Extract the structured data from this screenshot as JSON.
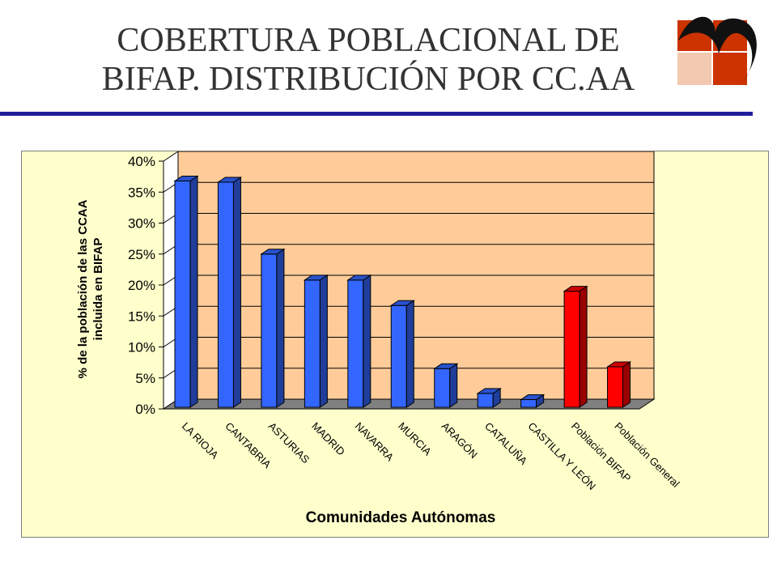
{
  "slide": {
    "title_line1": "COBERTURA POBLACIONAL DE",
    "title_line2": "BIFAP. DISTRIBUCIÓN POR CC.AA",
    "logo_icon": "bifap-logo-icon"
  },
  "colors": {
    "title_rule": "#1f1f9c",
    "chart_background": "#ffffcc",
    "plot_wall": "#ffcc99",
    "floor": "#808080",
    "bar_blue": "#3366ff",
    "bar_red": "#ff0000"
  },
  "chart_data": {
    "type": "bar",
    "three_d": true,
    "categories": [
      "LA RIOJA",
      "CANTABRIA",
      "ASTURIAS",
      "MADRID",
      "NAVARRA",
      "MURCIA",
      "ARAGÓN",
      "CATALUÑA",
      "CASTILLA Y LEÓN",
      "Población BIFAP",
      "Población General"
    ],
    "values": [
      36.8,
      36.6,
      25.0,
      20.8,
      20.8,
      16.7,
      6.5,
      2.5,
      1.5,
      19.0,
      6.8
    ],
    "bar_colors": [
      "#3366ff",
      "#3366ff",
      "#3366ff",
      "#3366ff",
      "#3366ff",
      "#3366ff",
      "#3366ff",
      "#3366ff",
      "#3366ff",
      "#ff0000",
      "#ff0000"
    ],
    "xlabel": "Comunidades Autónomas",
    "ylabel_line1": "% de la población de las CCAA",
    "ylabel_line2": "incluida en BIFAP",
    "ylim": [
      0,
      40
    ],
    "yticks": [
      "0%",
      "5%",
      "10%",
      "15%",
      "20%",
      "25%",
      "30%",
      "35%",
      "40%"
    ],
    "grid": true,
    "legend": "none"
  }
}
